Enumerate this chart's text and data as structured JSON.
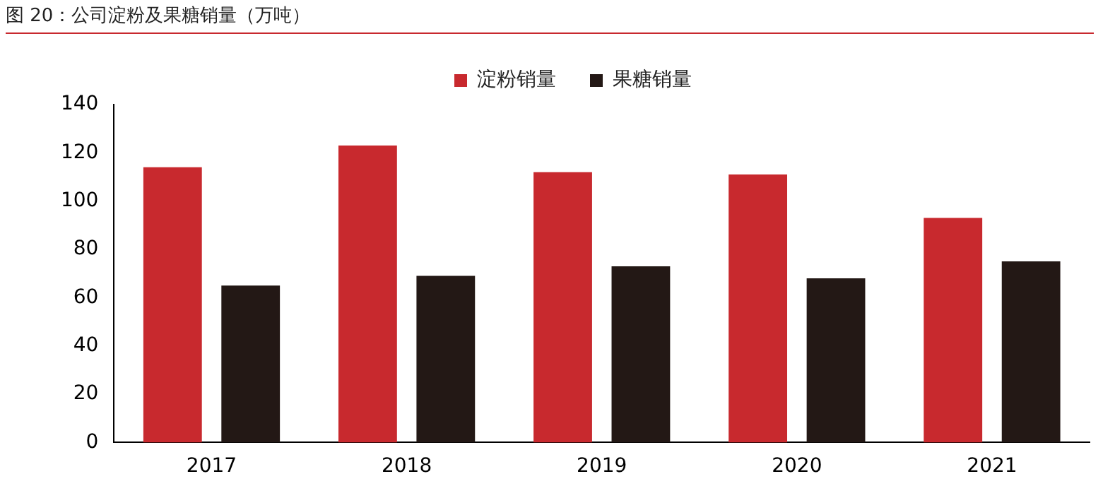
{
  "chart_data": {
    "type": "bar",
    "title": "图 20：公司淀粉及果糖销量（万吨）",
    "categories": [
      "2017",
      "2018",
      "2019",
      "2020",
      "2021"
    ],
    "series": [
      {
        "name": "淀粉销量",
        "color": "#c8292e",
        "values": [
          114,
          123,
          112,
          111,
          93
        ]
      },
      {
        "name": "果糖销量",
        "color": "#231815",
        "values": [
          65,
          69,
          73,
          68,
          75
        ]
      }
    ],
    "ylim": [
      0,
      140
    ],
    "yticks": [
      0,
      20,
      40,
      60,
      80,
      100,
      120,
      140
    ],
    "grid": false,
    "legend": "top"
  }
}
